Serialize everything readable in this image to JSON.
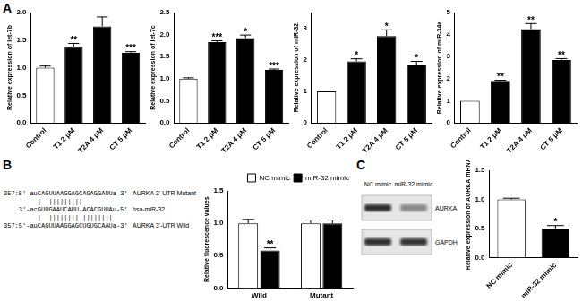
{
  "chart_data": [
    {
      "type": "bar",
      "y_label": "Relative expression of let-7b",
      "categories": [
        "Control",
        "T1 2 μM",
        "T2A 4 μM",
        "CT 5 μM"
      ],
      "values": [
        1.0,
        1.38,
        1.75,
        1.27
      ],
      "errors": [
        0.03,
        0.06,
        0.17,
        0.02
      ],
      "annotations": [
        null,
        "**",
        null,
        "***"
      ],
      "colors": [
        "#ffffff",
        "#000000",
        "#000000",
        "#000000"
      ],
      "ylim": [
        0,
        2.0
      ],
      "yticks": [
        {
          "value": 0,
          "label": "0.0"
        },
        {
          "value": 0.5,
          "label": "0.5"
        },
        {
          "value": 1.0,
          "label": "1.0"
        },
        {
          "value": 1.5,
          "label": "1.5"
        },
        {
          "value": 2.0,
          "label": "2.0"
        }
      ],
      "grid": false
    },
    {
      "type": "bar",
      "y_label": "Relative expression of let-7c",
      "categories": [
        "Control",
        "T1 2 μM",
        "T2A 4 μM",
        "CT 5 μM"
      ],
      "values": [
        1.0,
        1.83,
        1.92,
        1.2
      ],
      "errors": [
        0.02,
        0.03,
        0.07,
        0.02
      ],
      "annotations": [
        null,
        "***",
        "*",
        "***"
      ],
      "colors": [
        "#ffffff",
        "#000000",
        "#000000",
        "#000000"
      ],
      "ylim": [
        0,
        2.5
      ],
      "yticks": [
        {
          "value": 0,
          "label": "0.0"
        },
        {
          "value": 0.5,
          "label": "0.5"
        },
        {
          "value": 1.0,
          "label": "1.0"
        },
        {
          "value": 1.5,
          "label": "1.5"
        },
        {
          "value": 2.0,
          "label": "2.0"
        },
        {
          "value": 2.5,
          "label": "2.5"
        }
      ],
      "grid": false
    },
    {
      "type": "bar",
      "y_label": "Relative expression of miR-32",
      "categories": [
        "Control",
        "T1 2 μM",
        "T2A 4 μM",
        "CT 5 μM"
      ],
      "values": [
        1.0,
        1.95,
        2.75,
        1.85
      ],
      "errors": [
        0.0,
        0.08,
        0.2,
        0.1
      ],
      "annotations": [
        null,
        "*",
        "*",
        "*"
      ],
      "colors": [
        "#ffffff",
        "#000000",
        "#000000",
        "#000000"
      ],
      "ylim": [
        0,
        3.5
      ],
      "yticks": [
        0,
        1,
        2,
        3
      ],
      "grid": false
    },
    {
      "type": "bar",
      "y_label": "Relative expression of miR-34a",
      "categories": [
        "Control",
        "T1 2 μM",
        "T2A 4 μM",
        "CT 5 μM"
      ],
      "values": [
        1.0,
        1.9,
        4.25,
        2.85
      ],
      "errors": [
        0.0,
        0.03,
        0.25,
        0.06
      ],
      "annotations": [
        null,
        "**",
        "**",
        "**"
      ],
      "colors": [
        "#ffffff",
        "#000000",
        "#000000",
        "#000000"
      ],
      "ylim": [
        0,
        5
      ],
      "yticks": [
        0,
        1,
        2,
        3,
        4,
        5
      ],
      "grid": false
    },
    {
      "type": "bar",
      "y_label": "Relative fluorescence values",
      "categories": [
        "Wild",
        "Mutant"
      ],
      "series": [
        {
          "name": "NC mimic",
          "color": "#ffffff",
          "values": [
            1.0,
            1.0
          ],
          "errors": [
            0.06,
            0.05
          ],
          "annotations": [
            null,
            null
          ]
        },
        {
          "name": "miR-32 mimic",
          "color": "#000000",
          "values": [
            0.58,
            1.0
          ],
          "errors": [
            0.04,
            0.05
          ],
          "annotations": [
            "**",
            null
          ]
        }
      ],
      "legend": "top",
      "ylim": [
        0,
        1.5
      ],
      "yticks": [
        {
          "value": 0,
          "label": "0.0"
        },
        {
          "value": 0.5,
          "label": "0.5"
        },
        {
          "value": 1.0,
          "label": "1.0"
        },
        {
          "value": 1.5,
          "label": "1.5"
        }
      ],
      "grid": false
    },
    {
      "type": "bar",
      "y_label": "Relative expression of AURKA mRNA",
      "categories": [
        "NC mimic",
        "miR-32 mimic"
      ],
      "values": [
        1.0,
        0.5
      ],
      "errors": [
        0.02,
        0.05
      ],
      "annotations": [
        null,
        "*"
      ],
      "colors": [
        "#ffffff",
        "#000000"
      ],
      "ylim": [
        0,
        1.5
      ],
      "yticks": [
        {
          "value": 0,
          "label": "0.0"
        },
        {
          "value": 0.5,
          "label": "0.5"
        },
        {
          "value": 1.0,
          "label": "1.0"
        },
        {
          "value": 1.5,
          "label": "1.5"
        }
      ],
      "grid": false
    }
  ],
  "panel_labels": [
    "A",
    "B",
    "C"
  ],
  "sequence_diagram": {
    "rows": [
      {
        "sequence": "357:5'-auCAGUUAAGGAGCAGAGGAUUa-3'",
        "label": "AURKA 3'-UTR Mutant"
      },
      {
        "sequence": "         |  |||||||||"
      },
      {
        "sequence": "    3'-acGUUGAAUCAUU-ACACGUUAu-5'",
        "label": "hsa-miR-32"
      },
      {
        "sequence": "         |  |||||||| ||||||||"
      },
      {
        "sequence": "357:5'-auCAGUUAAGGAGCUGUGCAAUa-3'",
        "label": "AURKA 3'-UTR Wild"
      }
    ]
  },
  "blot": {
    "lanes": [
      "NC mimic",
      "miR-32 mimic"
    ],
    "bands": [
      "AURKA",
      "GAPDH"
    ]
  }
}
